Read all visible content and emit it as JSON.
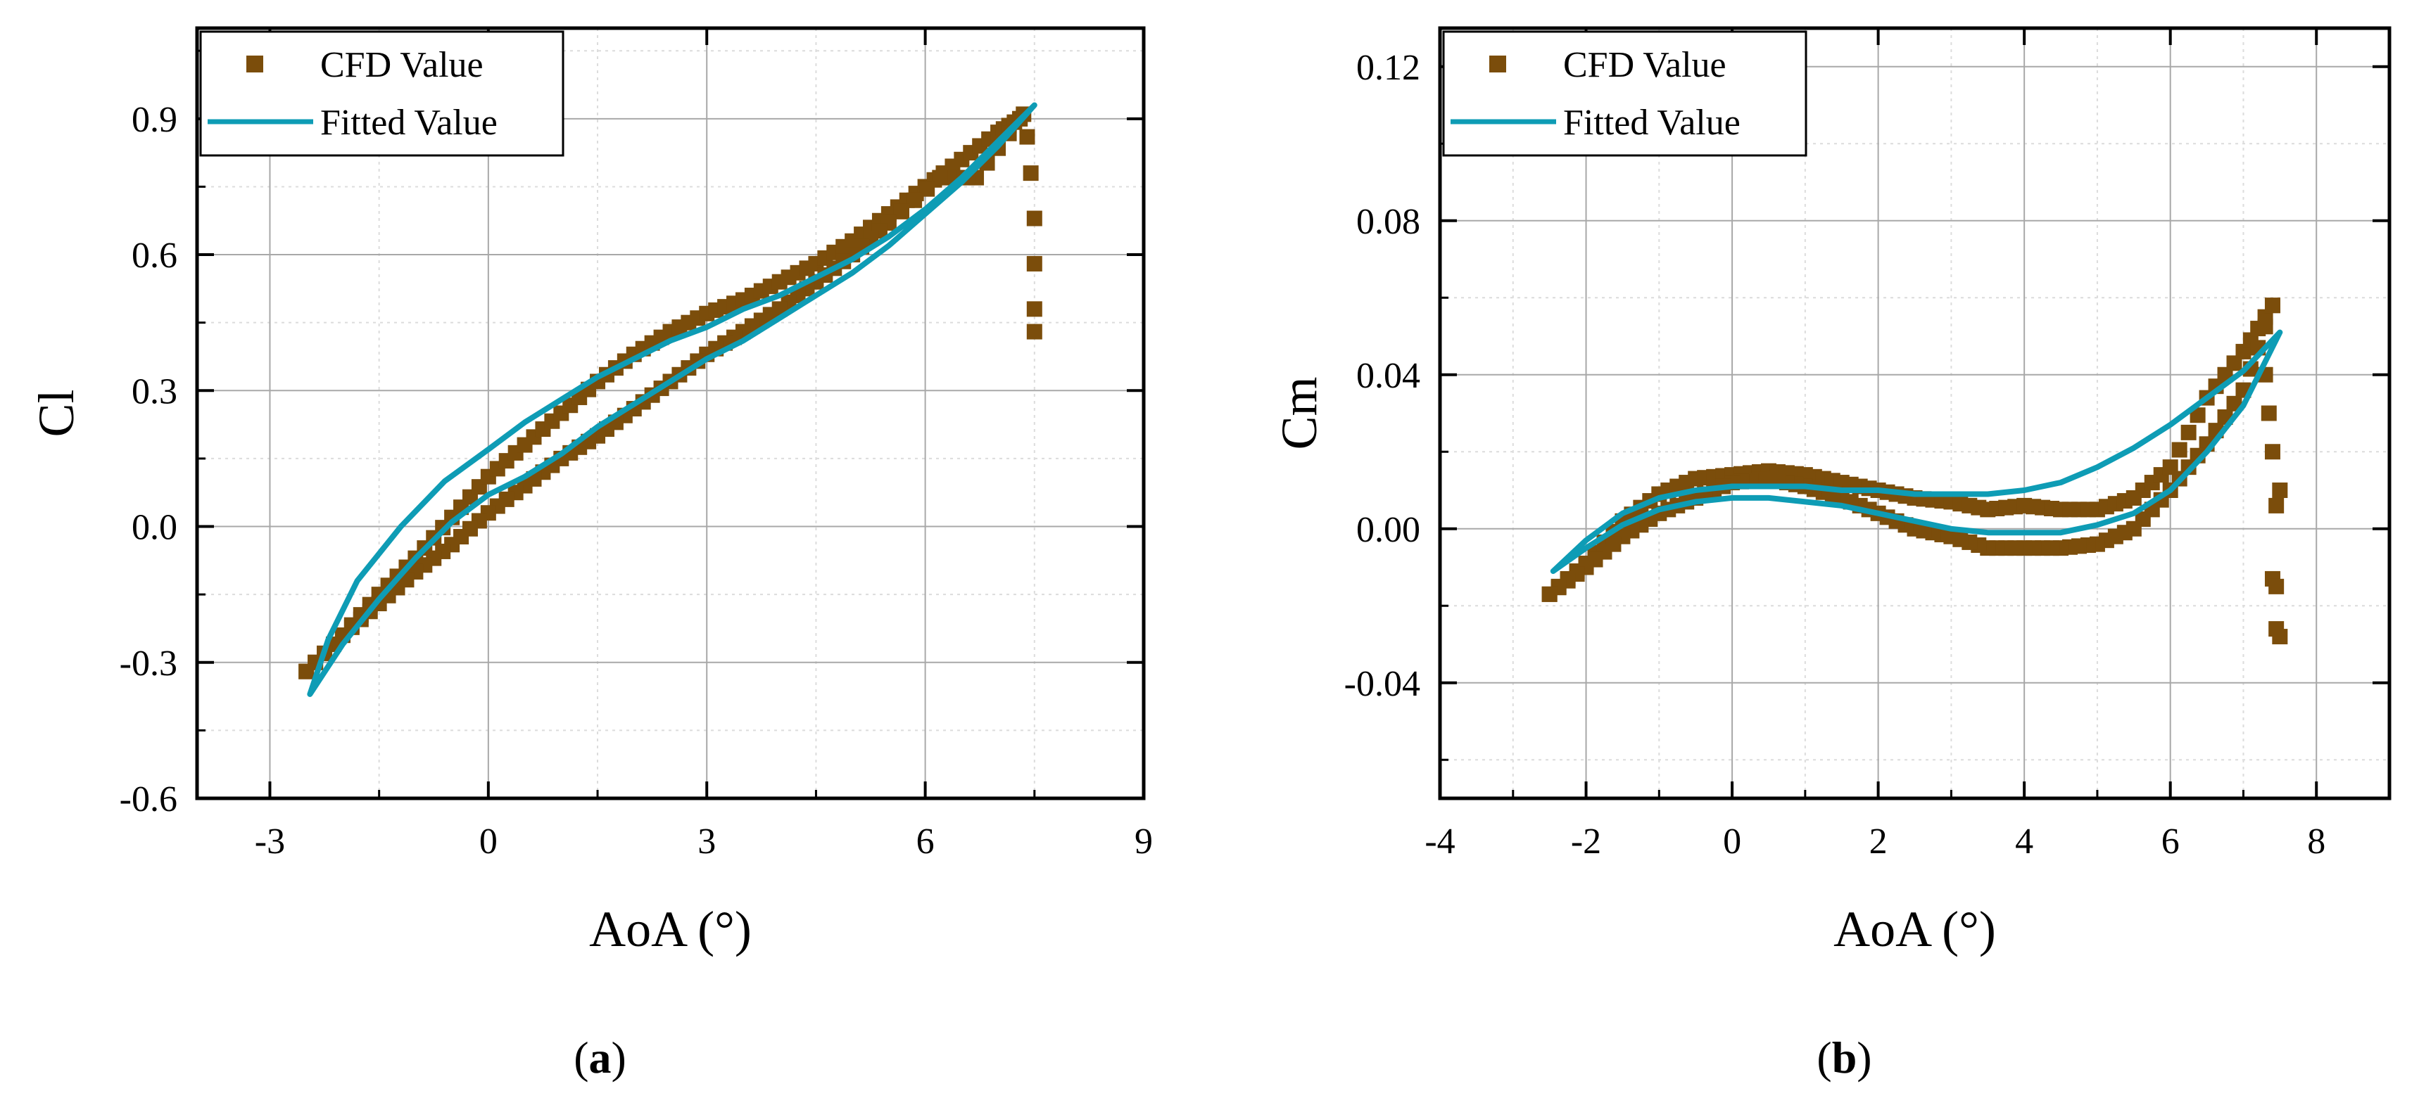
{
  "colors": {
    "cfd": "#7b4d0b",
    "fitted": "#0e9cb5",
    "axis": "#000000",
    "grid_major": "#a8a8a8",
    "grid_minor": "#dcdcdc"
  },
  "chart_data": [
    {
      "type": "scatter",
      "panel": "a",
      "panel_label_parts": [
        "(",
        "a",
        ")"
      ],
      "xlabel": "AoA (°)",
      "ylabel": "Cl",
      "xlim": [
        -4,
        9
      ],
      "ylim": [
        -0.6,
        1.1
      ],
      "xticks": [
        -3,
        0,
        3,
        6,
        9
      ],
      "xtick_labels": [
        "-3",
        "0",
        "3",
        "6",
        "9"
      ],
      "yticks": [
        -0.6,
        -0.3,
        0.0,
        0.3,
        0.6,
        0.9
      ],
      "ytick_labels": [
        "-0.6",
        "-0.3",
        "0.0",
        "0.3",
        "0.6",
        "0.9"
      ],
      "grid": true,
      "legend": {
        "position": "top-left",
        "entries": [
          "CFD Value",
          "Fitted Value"
        ]
      },
      "series": [
        {
          "name": "CFD Value",
          "kind": "markers",
          "upstroke": [
            [
              -2.5,
              -0.32
            ],
            [
              -2.0,
              -0.24
            ],
            [
              -1.5,
              -0.15
            ],
            [
              -1.0,
              -0.07
            ],
            [
              -0.5,
              0.02
            ],
            [
              0,
              0.11
            ],
            [
              0.5,
              0.18
            ],
            [
              1.0,
              0.25
            ],
            [
              1.5,
              0.32
            ],
            [
              2.0,
              0.38
            ],
            [
              2.5,
              0.43
            ],
            [
              3.0,
              0.47
            ],
            [
              3.5,
              0.5
            ],
            [
              4.0,
              0.54
            ],
            [
              4.5,
              0.58
            ],
            [
              5.0,
              0.63
            ],
            [
              5.5,
              0.69
            ],
            [
              6.0,
              0.75
            ],
            [
              6.5,
              0.81
            ],
            [
              7.0,
              0.87
            ],
            [
              7.3,
              0.9
            ]
          ],
          "downstroke": [
            [
              7.3,
              0.9
            ],
            [
              6.7,
              0.77
            ],
            [
              6.2,
              0.77
            ],
            [
              5.5,
              0.67
            ],
            [
              5.0,
              0.6
            ],
            [
              4.5,
              0.54
            ],
            [
              4.0,
              0.48
            ],
            [
              3.5,
              0.43
            ],
            [
              3.0,
              0.38
            ],
            [
              2.5,
              0.32
            ],
            [
              2.0,
              0.26
            ],
            [
              1.5,
              0.2
            ],
            [
              1.0,
              0.15
            ],
            [
              0.5,
              0.09
            ],
            [
              0,
              0.03
            ],
            [
              -0.5,
              -0.04
            ],
            [
              -1.0,
              -0.1
            ],
            [
              -1.5,
              -0.17
            ],
            [
              -2.0,
              -0.24
            ],
            [
              -2.5,
              -0.32
            ]
          ],
          "stall": [
            [
              7.35,
              0.91
            ],
            [
              7.4,
              0.86
            ],
            [
              7.45,
              0.78
            ],
            [
              7.5,
              0.68
            ],
            [
              7.5,
              0.58
            ],
            [
              7.5,
              0.48
            ],
            [
              7.5,
              0.43
            ]
          ]
        },
        {
          "name": "Fitted Value",
          "kind": "line",
          "upper": [
            [
              -2.45,
              -0.37
            ],
            [
              -2.2,
              -0.25
            ],
            [
              -1.8,
              -0.12
            ],
            [
              -1.2,
              0.0
            ],
            [
              -0.6,
              0.1
            ],
            [
              0,
              0.17
            ],
            [
              0.5,
              0.23
            ],
            [
              1.0,
              0.28
            ],
            [
              1.5,
              0.33
            ],
            [
              2.0,
              0.37
            ],
            [
              2.5,
              0.41
            ],
            [
              3.0,
              0.44
            ],
            [
              3.5,
              0.48
            ],
            [
              4.0,
              0.51
            ],
            [
              4.5,
              0.55
            ],
            [
              5.0,
              0.59
            ],
            [
              5.5,
              0.64
            ],
            [
              6.0,
              0.7
            ],
            [
              6.5,
              0.77
            ],
            [
              7.0,
              0.85
            ],
            [
              7.5,
              0.93
            ]
          ],
          "lower": [
            [
              7.5,
              0.93
            ],
            [
              7.0,
              0.84
            ],
            [
              6.5,
              0.76
            ],
            [
              6.0,
              0.69
            ],
            [
              5.5,
              0.62
            ],
            [
              5.0,
              0.56
            ],
            [
              4.5,
              0.51
            ],
            [
              4.0,
              0.46
            ],
            [
              3.5,
              0.41
            ],
            [
              3.0,
              0.37
            ],
            [
              2.5,
              0.32
            ],
            [
              2.0,
              0.27
            ],
            [
              1.5,
              0.22
            ],
            [
              1.0,
              0.16
            ],
            [
              0.5,
              0.11
            ],
            [
              0,
              0.07
            ],
            [
              -0.5,
              0.01
            ],
            [
              -1.0,
              -0.07
            ],
            [
              -1.5,
              -0.16
            ],
            [
              -2.0,
              -0.26
            ],
            [
              -2.45,
              -0.37
            ]
          ]
        }
      ]
    },
    {
      "type": "scatter",
      "panel": "b",
      "panel_label_parts": [
        "(",
        "b",
        ")"
      ],
      "xlabel": "AoA (°)",
      "ylabel": "Cm",
      "xlim": [
        -4,
        9
      ],
      "ylim": [
        -0.07,
        0.13
      ],
      "xticks": [
        -4,
        -2,
        0,
        2,
        4,
        6,
        8
      ],
      "xtick_labels": [
        "-4",
        "-2",
        "0",
        "2",
        "4",
        "6",
        "8"
      ],
      "yticks": [
        -0.04,
        0.0,
        0.04,
        0.08,
        0.12
      ],
      "ytick_labels": [
        "-0.04",
        "0.00",
        "0.04",
        "0.08",
        "0.12"
      ],
      "grid": true,
      "legend": {
        "position": "top-left",
        "entries": [
          "CFD Value",
          "Fitted Value"
        ]
      },
      "series": [
        {
          "name": "CFD Value",
          "kind": "markers",
          "upstroke": [
            [
              -2.5,
              -0.017
            ],
            [
              -2.0,
              -0.009
            ],
            [
              -1.5,
              0.002
            ],
            [
              -1.0,
              0.009
            ],
            [
              -0.5,
              0.013
            ],
            [
              0,
              0.014
            ],
            [
              0.5,
              0.015
            ],
            [
              1.0,
              0.014
            ],
            [
              1.5,
              0.012
            ],
            [
              2.0,
              0.01
            ],
            [
              2.5,
              0.008
            ],
            [
              3.0,
              0.007
            ],
            [
              3.5,
              0.005
            ],
            [
              4.0,
              0.006
            ],
            [
              4.5,
              0.005
            ],
            [
              5.0,
              0.005
            ],
            [
              5.5,
              0.008
            ],
            [
              6.0,
              0.016
            ],
            [
              6.5,
              0.034
            ],
            [
              7.0,
              0.046
            ],
            [
              7.4,
              0.058
            ]
          ],
          "downstroke": [
            [
              7.4,
              0.058
            ],
            [
              7.0,
              0.036
            ],
            [
              6.5,
              0.022
            ],
            [
              6.0,
              0.01
            ],
            [
              5.5,
              0.0
            ],
            [
              5.0,
              -0.004
            ],
            [
              4.5,
              -0.005
            ],
            [
              4.0,
              -0.005
            ],
            [
              3.5,
              -0.005
            ],
            [
              3.0,
              -0.002
            ],
            [
              2.5,
              0.0
            ],
            [
              2.0,
              0.004
            ],
            [
              1.5,
              0.008
            ],
            [
              1.0,
              0.011
            ],
            [
              0.5,
              0.013
            ],
            [
              0,
              0.012
            ],
            [
              -0.5,
              0.008
            ],
            [
              -1.0,
              0.004
            ],
            [
              -1.5,
              -0.002
            ],
            [
              -2.0,
              -0.01
            ],
            [
              -2.5,
              -0.017
            ]
          ],
          "stall": [
            [
              7.3,
              0.04
            ],
            [
              7.35,
              0.03
            ],
            [
              7.4,
              0.02
            ],
            [
              7.45,
              0.006
            ],
            [
              7.5,
              0.01
            ],
            [
              7.4,
              -0.013
            ],
            [
              7.45,
              -0.015
            ],
            [
              7.5,
              -0.028
            ],
            [
              7.45,
              -0.026
            ]
          ]
        },
        {
          "name": "Fitted Value",
          "kind": "line",
          "upper": [
            [
              -2.45,
              -0.011
            ],
            [
              -2.0,
              -0.003
            ],
            [
              -1.5,
              0.004
            ],
            [
              -1.0,
              0.008
            ],
            [
              -0.5,
              0.01
            ],
            [
              0,
              0.011
            ],
            [
              0.5,
              0.011
            ],
            [
              1.0,
              0.011
            ],
            [
              1.5,
              0.01
            ],
            [
              2.0,
              0.01
            ],
            [
              2.5,
              0.009
            ],
            [
              3.0,
              0.009
            ],
            [
              3.5,
              0.009
            ],
            [
              4.0,
              0.01
            ],
            [
              4.5,
              0.012
            ],
            [
              5.0,
              0.016
            ],
            [
              5.5,
              0.021
            ],
            [
              6.0,
              0.027
            ],
            [
              6.5,
              0.034
            ],
            [
              7.0,
              0.041
            ],
            [
              7.5,
              0.051
            ]
          ],
          "lower": [
            [
              7.5,
              0.051
            ],
            [
              7.0,
              0.032
            ],
            [
              6.5,
              0.02
            ],
            [
              6.0,
              0.01
            ],
            [
              5.5,
              0.004
            ],
            [
              5.0,
              0.001
            ],
            [
              4.5,
              -0.001
            ],
            [
              4.0,
              -0.001
            ],
            [
              3.5,
              -0.001
            ],
            [
              3.0,
              0.0
            ],
            [
              2.5,
              0.002
            ],
            [
              2.0,
              0.004
            ],
            [
              1.5,
              0.006
            ],
            [
              1.0,
              0.007
            ],
            [
              0.5,
              0.008
            ],
            [
              0,
              0.008
            ],
            [
              -0.5,
              0.007
            ],
            [
              -1.0,
              0.005
            ],
            [
              -1.5,
              0.001
            ],
            [
              -2.0,
              -0.005
            ],
            [
              -2.45,
              -0.011
            ]
          ]
        }
      ]
    }
  ]
}
